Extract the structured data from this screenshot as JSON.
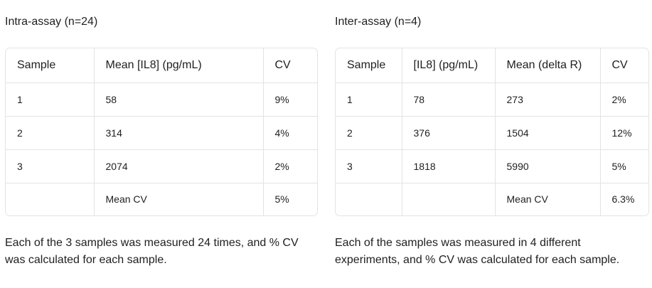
{
  "intra": {
    "title": "Intra-assay (n=24)",
    "headers": [
      "Sample",
      "Mean [IL8] (pg/mL)",
      "CV"
    ],
    "rows": [
      [
        "1",
        "58",
        "9%"
      ],
      [
        "2",
        "314",
        "4%"
      ],
      [
        "3",
        "2074",
        "2%"
      ],
      [
        "",
        "Mean CV",
        "5%"
      ]
    ],
    "footnote": "Each of the 3 samples was measured 24 times, and % CV was calculated for each sample."
  },
  "inter": {
    "title": "Inter-assay (n=4)",
    "headers": [
      "Sample",
      "[IL8] (pg/mL)",
      "Mean (delta R)",
      "CV"
    ],
    "rows": [
      [
        "1",
        "78",
        "273",
        "2%"
      ],
      [
        "2",
        "376",
        "1504",
        "12%"
      ],
      [
        "3",
        "1818",
        "5990",
        "5%"
      ],
      [
        "",
        "",
        "Mean CV",
        "6.3%"
      ]
    ],
    "footnote": "Each of the samples was measured in 4 different experiments, and % CV was calculated for each sample."
  }
}
